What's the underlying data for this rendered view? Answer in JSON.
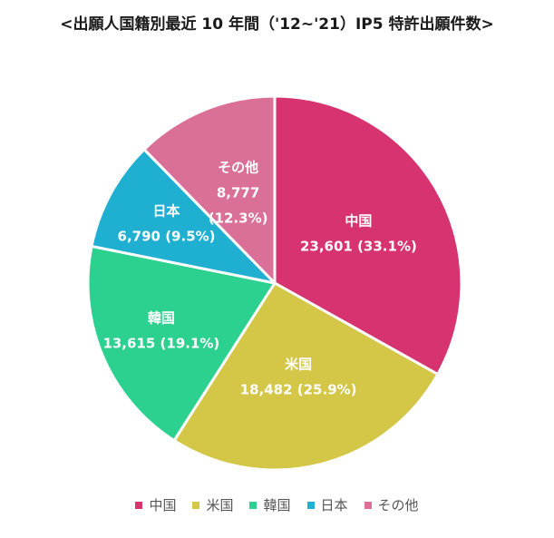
{
  "chart_data": {
    "type": "pie",
    "title": "<出願人国籍別最近 10 年間（'12~'21）IP5 特許出願件数>",
    "slices": [
      {
        "name": "中国",
        "value": 23601,
        "percent_label": "33.1%",
        "value_label": "23,601",
        "color": "#d63370"
      },
      {
        "name": "米国",
        "value": 18482,
        "percent_label": "25.9%",
        "value_label": "18,482",
        "color": "#d4c646"
      },
      {
        "name": "韓国",
        "value": 13615,
        "percent_label": "19.1%",
        "value_label": "13,615",
        "color": "#2dd18f"
      },
      {
        "name": "日本",
        "value": 6790,
        "percent_label": "9.5%",
        "value_label": "6,790",
        "color": "#1fb0d1"
      },
      {
        "name": "その他",
        "value": 8777,
        "percent_label": "12.3%",
        "value_label": "8,777",
        "color": "#da7098"
      }
    ],
    "legend_position": "bottom"
  }
}
